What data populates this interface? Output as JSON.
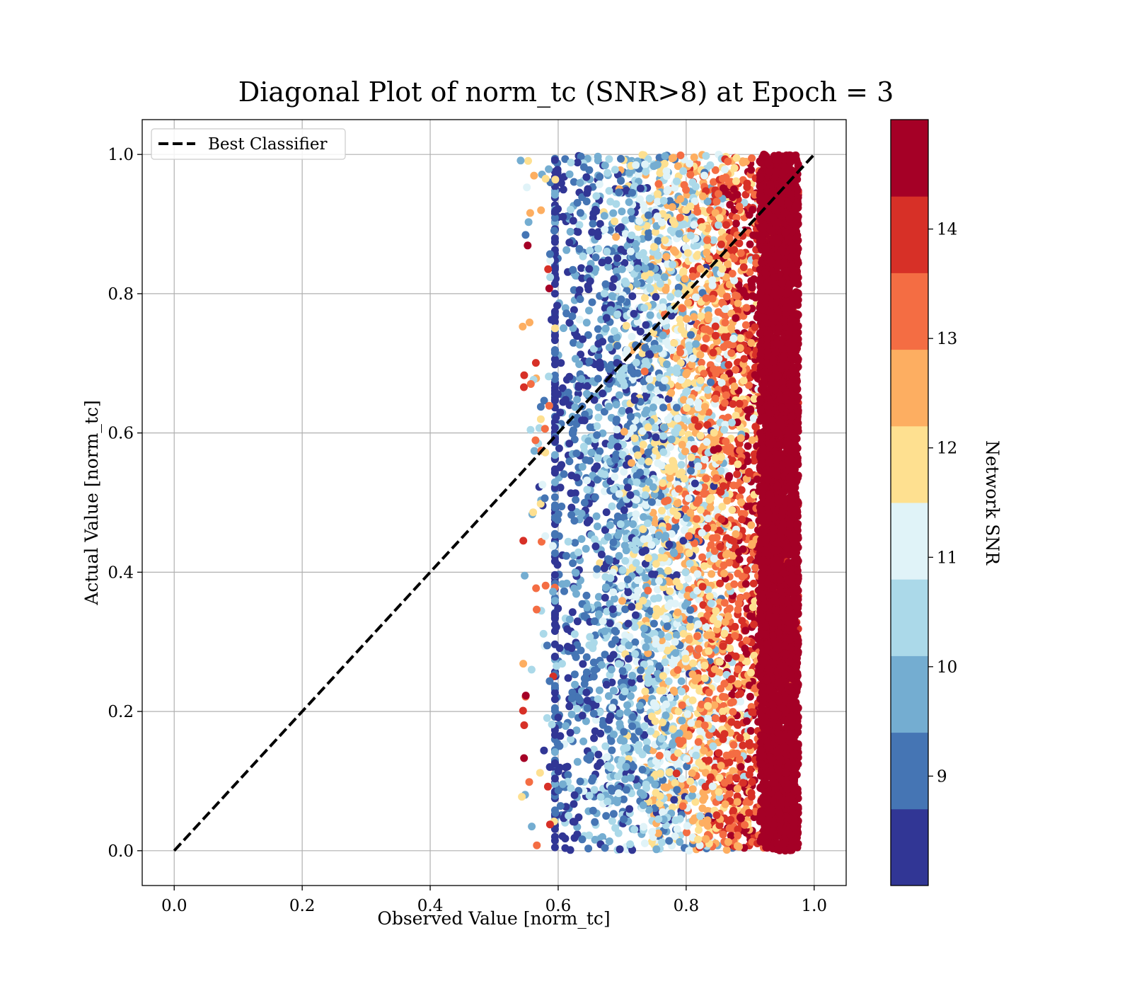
{
  "chart_data": {
    "type": "scatter",
    "title": "Diagonal Plot of norm_tc (SNR>8) at Epoch = 3",
    "xlabel": "Observed Value [norm_tc]",
    "ylabel": "Actual Value [norm_tc]",
    "xlim": [
      -0.05,
      1.05
    ],
    "ylim": [
      -0.05,
      1.05
    ],
    "xticks": [
      0.0,
      0.2,
      0.4,
      0.6,
      0.8,
      1.0
    ],
    "yticks": [
      0.0,
      0.2,
      0.4,
      0.6,
      0.8,
      1.0
    ],
    "xtick_labels": [
      "0.0",
      "0.2",
      "0.4",
      "0.6",
      "0.8",
      "1.0"
    ],
    "ytick_labels": [
      "0.0",
      "0.2",
      "0.4",
      "0.6",
      "0.8",
      "1.0"
    ],
    "grid": true,
    "legend": {
      "position": "upper-left",
      "entries": [
        "Best Classifier"
      ]
    },
    "diagonal_line": {
      "name": "Best Classifier",
      "x": [
        0.0,
        1.0
      ],
      "y": [
        0.0,
        1.0
      ],
      "style": "dashed",
      "color": "#000000"
    },
    "scatter_summary": {
      "observed_range": [
        0.54,
        0.975
      ],
      "actual_range": [
        0.0,
        1.0
      ],
      "trend": "higher Network SNR concentrated at observed values 0.9–0.97; lower SNR spread across 0.55–0.85"
    },
    "colorbar": {
      "label": "Network SNR",
      "range": [
        8,
        15
      ],
      "ticks": [
        9,
        10,
        11,
        12,
        13,
        14
      ],
      "tick_labels": [
        "9",
        "10",
        "11",
        "12",
        "13",
        "14"
      ],
      "colors": [
        "#313695",
        "#4575b4",
        "#74add1",
        "#abd9e9",
        "#e0f3f8",
        "#fee090",
        "#fdae61",
        "#f46d43",
        "#d73027",
        "#a50026"
      ]
    }
  }
}
